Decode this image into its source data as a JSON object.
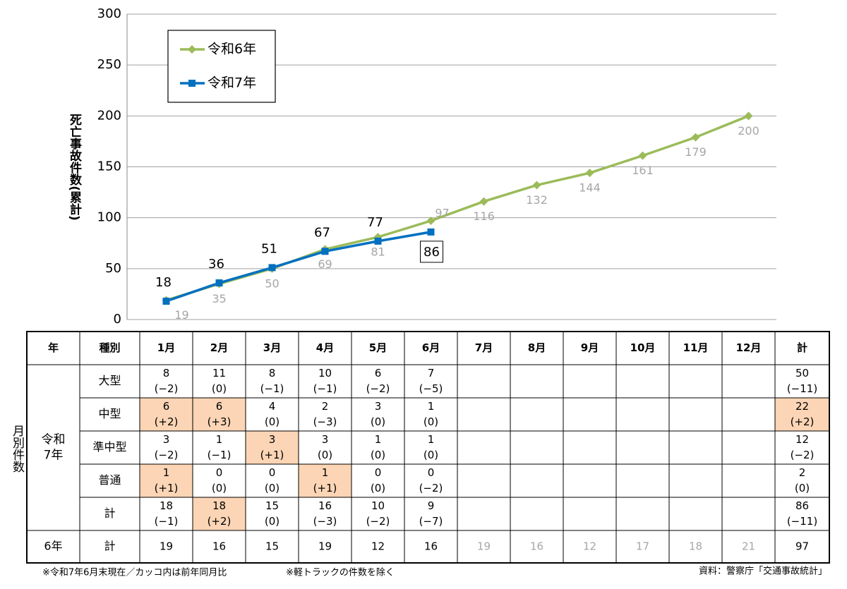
{
  "chart_data": {
    "type": "line",
    "y_label": "死亡事故件数(累計)",
    "ylim": [
      0,
      300
    ],
    "yticks": [
      0,
      50,
      100,
      150,
      200,
      250,
      300
    ],
    "grid": true,
    "legend": "upper left",
    "series": [
      {
        "name": "令和6年",
        "color": "#9bbb59",
        "marker": "diamond",
        "label_color": "#a6a6a6",
        "values": [
          19,
          35,
          50,
          69,
          81,
          97,
          116,
          132,
          144,
          161,
          179,
          200
        ]
      },
      {
        "name": "令和7年",
        "color": "#0070c0",
        "marker": "square",
        "label_color": "#000000",
        "values": [
          18,
          36,
          51,
          67,
          77,
          86
        ]
      }
    ]
  },
  "table": {
    "header": [
      "年",
      "種別",
      "1月",
      "2月",
      "3月",
      "4月",
      "5月",
      "6月",
      "7月",
      "8月",
      "9月",
      "10月",
      "11月",
      "12月",
      "計"
    ],
    "side_label": "月別件数",
    "group_label_lines": [
      "令和",
      "7年"
    ],
    "highlight_color": "#fbd5b5",
    "muted_color": "#a6a6a6",
    "rows": [
      {
        "type": "大型",
        "cells": [
          {
            "count": "8",
            "diff": "(−2)"
          },
          {
            "count": "11",
            "diff": "(0)"
          },
          {
            "count": "8",
            "diff": "(−1)"
          },
          {
            "count": "10",
            "diff": "(−1)"
          },
          {
            "count": "6",
            "diff": "(−2)"
          },
          {
            "count": "7",
            "diff": "(−5)"
          }
        ],
        "total": {
          "count": "50",
          "diff": "(−11)"
        }
      },
      {
        "type": "中型",
        "cells": [
          {
            "count": "6",
            "diff": "(+2)",
            "highlight": true
          },
          {
            "count": "6",
            "diff": "(+3)",
            "highlight": true
          },
          {
            "count": "4",
            "diff": "(0)"
          },
          {
            "count": "2",
            "diff": "(−3)"
          },
          {
            "count": "3",
            "diff": "(0)"
          },
          {
            "count": "1",
            "diff": "(0)"
          }
        ],
        "total": {
          "count": "22",
          "diff": "(+2)",
          "highlight": true
        }
      },
      {
        "type": "準中型",
        "cells": [
          {
            "count": "3",
            "diff": "(−2)"
          },
          {
            "count": "1",
            "diff": "(−1)"
          },
          {
            "count": "3",
            "diff": "(+1)",
            "highlight": true
          },
          {
            "count": "3",
            "diff": "(0)"
          },
          {
            "count": "1",
            "diff": "(0)"
          },
          {
            "count": "1",
            "diff": "(0)"
          }
        ],
        "total": {
          "count": "12",
          "diff": "(−2)"
        }
      },
      {
        "type": "普通",
        "cells": [
          {
            "count": "1",
            "diff": "(+1)",
            "highlight": true
          },
          {
            "count": "0",
            "diff": "(0)"
          },
          {
            "count": "0",
            "diff": "(0)"
          },
          {
            "count": "1",
            "diff": "(+1)",
            "highlight": true
          },
          {
            "count": "0",
            "diff": "(0)"
          },
          {
            "count": "0",
            "diff": "(−2)"
          }
        ],
        "total": {
          "count": "2",
          "diff": "(0)"
        }
      },
      {
        "type": "計",
        "cells": [
          {
            "count": "18",
            "diff": "(−1)"
          },
          {
            "count": "18",
            "diff": "(+2)",
            "highlight": true
          },
          {
            "count": "15",
            "diff": "(0)"
          },
          {
            "count": "16",
            "diff": "(−3)"
          },
          {
            "count": "10",
            "diff": "(−2)"
          },
          {
            "count": "9",
            "diff": "(−7)"
          }
        ],
        "total": {
          "count": "86",
          "diff": "(−11)"
        }
      }
    ],
    "prior": {
      "year": "6年",
      "type": "計",
      "cells": [
        {
          "text": "19"
        },
        {
          "text": "16"
        },
        {
          "text": "15"
        },
        {
          "text": "19"
        },
        {
          "text": "12"
        },
        {
          "text": "16"
        },
        {
          "text": "19",
          "muted": true
        },
        {
          "text": "16",
          "muted": true
        },
        {
          "text": "12",
          "muted": true
        },
        {
          "text": "17",
          "muted": true
        },
        {
          "text": "18",
          "muted": true
        },
        {
          "text": "21",
          "muted": true
        }
      ],
      "total": "97"
    }
  },
  "footnotes": {
    "left": "※令和7年6月末現在／カッコ内は前年同月比",
    "middle": "※軽トラックの件数を除く",
    "source": "資料：警察庁「交通事故統計」"
  }
}
